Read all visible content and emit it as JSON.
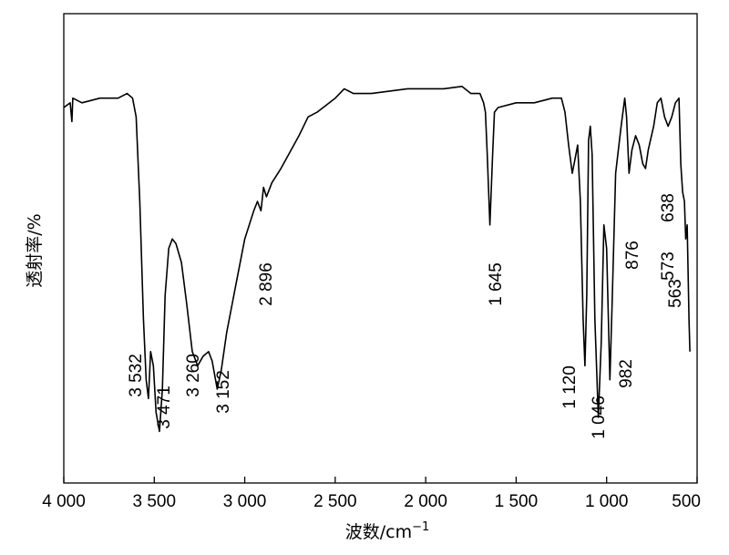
{
  "chart_data": {
    "type": "line",
    "title": "",
    "xlabel": "波数/cm",
    "xlabel_sup": "−1",
    "ylabel": "透射率/%",
    "xlim": [
      4000,
      500
    ],
    "x_reversed": true,
    "y_ticks_shown": false,
    "grid": false,
    "x_ticks": [
      {
        "value": 4000,
        "label": "4 000"
      },
      {
        "value": 3500,
        "label": "3 500"
      },
      {
        "value": 3000,
        "label": "3 000"
      },
      {
        "value": 2500,
        "label": "2 500"
      },
      {
        "value": 2000,
        "label": "2 000"
      },
      {
        "value": 1500,
        "label": "1 500"
      },
      {
        "value": 1000,
        "label": "1 000"
      },
      {
        "value": 500,
        "label": "500"
      }
    ],
    "peaks": [
      {
        "x": 3532,
        "label": "3 532"
      },
      {
        "x": 3471,
        "label": "3 471"
      },
      {
        "x": 3260,
        "label": "3 260"
      },
      {
        "x": 3152,
        "label": "3 152"
      },
      {
        "x": 2896,
        "label": "2 896"
      },
      {
        "x": 1645,
        "label": "1 645"
      },
      {
        "x": 1120,
        "label": "1 120"
      },
      {
        "x": 1046,
        "label": "1 046"
      },
      {
        "x": 982,
        "label": "982"
      },
      {
        "x": 876,
        "label": "876"
      },
      {
        "x": 638,
        "label": "638"
      },
      {
        "x": 573,
        "label": "573"
      },
      {
        "x": 563,
        "label": "563"
      }
    ],
    "series": [
      {
        "values": [
          [
            4000,
            80
          ],
          [
            3965,
            81
          ],
          [
            3955,
            77
          ],
          [
            3950,
            82
          ],
          [
            3900,
            81
          ],
          [
            3800,
            82
          ],
          [
            3700,
            82
          ],
          [
            3650,
            83
          ],
          [
            3620,
            82
          ],
          [
            3600,
            78
          ],
          [
            3580,
            60
          ],
          [
            3560,
            35
          ],
          [
            3545,
            22
          ],
          [
            3532,
            18
          ],
          [
            3520,
            28
          ],
          [
            3505,
            25
          ],
          [
            3490,
            15
          ],
          [
            3471,
            11
          ],
          [
            3455,
            20
          ],
          [
            3440,
            40
          ],
          [
            3420,
            50
          ],
          [
            3400,
            52
          ],
          [
            3380,
            51
          ],
          [
            3350,
            47
          ],
          [
            3320,
            38
          ],
          [
            3290,
            28
          ],
          [
            3260,
            25
          ],
          [
            3230,
            27
          ],
          [
            3200,
            28
          ],
          [
            3180,
            26
          ],
          [
            3152,
            20
          ],
          [
            3130,
            24
          ],
          [
            3100,
            32
          ],
          [
            3050,
            42
          ],
          [
            3000,
            52
          ],
          [
            2950,
            58
          ],
          [
            2930,
            60
          ],
          [
            2910,
            58
          ],
          [
            2896,
            63
          ],
          [
            2880,
            61
          ],
          [
            2850,
            64
          ],
          [
            2800,
            67
          ],
          [
            2700,
            74
          ],
          [
            2650,
            78
          ],
          [
            2600,
            79
          ],
          [
            2500,
            82
          ],
          [
            2450,
            84
          ],
          [
            2400,
            83
          ],
          [
            2300,
            83
          ],
          [
            2100,
            84
          ],
          [
            2000,
            84
          ],
          [
            1900,
            84
          ],
          [
            1800,
            84.5
          ],
          [
            1750,
            83
          ],
          [
            1700,
            83
          ],
          [
            1680,
            81
          ],
          [
            1670,
            79
          ],
          [
            1660,
            70
          ],
          [
            1645,
            55
          ],
          [
            1630,
            70
          ],
          [
            1620,
            79
          ],
          [
            1600,
            80
          ],
          [
            1500,
            81
          ],
          [
            1400,
            81
          ],
          [
            1300,
            82
          ],
          [
            1250,
            82
          ],
          [
            1230,
            79
          ],
          [
            1210,
            72
          ],
          [
            1190,
            66
          ],
          [
            1175,
            69
          ],
          [
            1160,
            72
          ],
          [
            1145,
            60
          ],
          [
            1130,
            35
          ],
          [
            1120,
            25
          ],
          [
            1110,
            40
          ],
          [
            1100,
            73
          ],
          [
            1090,
            76
          ],
          [
            1080,
            70
          ],
          [
            1065,
            35
          ],
          [
            1046,
            14
          ],
          [
            1030,
            30
          ],
          [
            1015,
            55
          ],
          [
            1000,
            50
          ],
          [
            982,
            22
          ],
          [
            970,
            38
          ],
          [
            950,
            66
          ],
          [
            920,
            76
          ],
          [
            900,
            82
          ],
          [
            890,
            78
          ],
          [
            876,
            66
          ],
          [
            860,
            71
          ],
          [
            840,
            74
          ],
          [
            820,
            72
          ],
          [
            800,
            68
          ],
          [
            785,
            67
          ],
          [
            770,
            71
          ],
          [
            740,
            76
          ],
          [
            720,
            81
          ],
          [
            700,
            82
          ],
          [
            680,
            78
          ],
          [
            660,
            76
          ],
          [
            640,
            78
          ],
          [
            620,
            81
          ],
          [
            600,
            82
          ],
          [
            590,
            68
          ],
          [
            580,
            62
          ],
          [
            570,
            60
          ],
          [
            563,
            52
          ],
          [
            555,
            55
          ],
          [
            545,
            35
          ],
          [
            540,
            28
          ]
        ]
      }
    ]
  }
}
